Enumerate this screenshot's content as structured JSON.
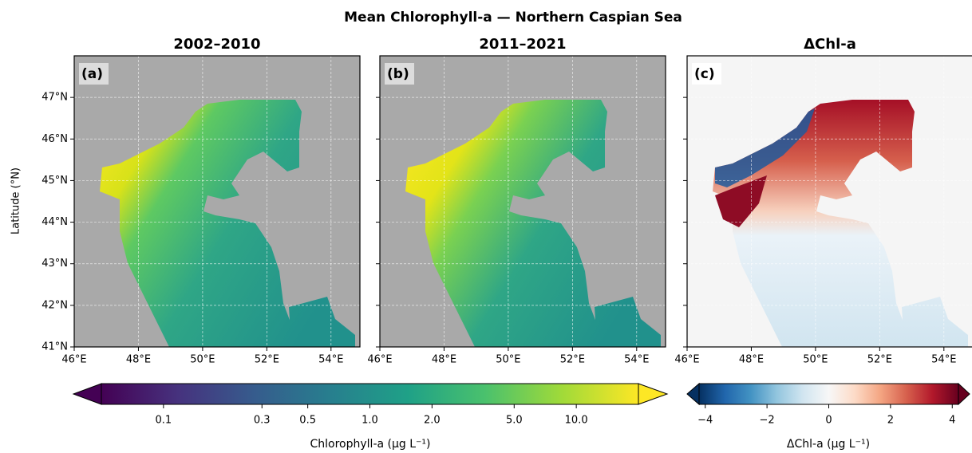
{
  "title": "Mean Chlorophyll-a — Northern Caspian Sea",
  "y_label": "Latitude (°N)",
  "panels": [
    {
      "title": "2002–2010",
      "label": "(a)"
    },
    {
      "title": "2011–2021",
      "label": "(b)"
    },
    {
      "title": "ΔChl-a",
      "label": "(c)"
    }
  ],
  "xlim": [
    46,
    54.9
  ],
  "ylim": [
    41,
    48
  ],
  "xticks": [
    {
      "value": 46,
      "label": "46°E"
    },
    {
      "value": 48,
      "label": "48°E"
    },
    {
      "value": 50,
      "label": "50°E"
    },
    {
      "value": 52,
      "label": "52°E"
    },
    {
      "value": 54,
      "label": "54°E"
    }
  ],
  "yticks": [
    {
      "value": 41,
      "label": "41°N"
    },
    {
      "value": 42,
      "label": "42°N"
    },
    {
      "value": 43,
      "label": "43°N"
    },
    {
      "value": 44,
      "label": "44°N"
    },
    {
      "value": 45,
      "label": "45°N"
    },
    {
      "value": 46,
      "label": "46°N"
    },
    {
      "value": 47,
      "label": "47°N"
    }
  ],
  "grid": true,
  "colorbars": [
    {
      "label": "Chlorophyll-a  (µg L⁻¹)",
      "scale": "log",
      "clim": [
        0.05,
        20
      ],
      "ticks": [
        0.1,
        0.3,
        0.5,
        {
          "value": 1,
          "label": "1.0"
        },
        {
          "value": 2,
          "label": "2.0"
        },
        {
          "value": 5,
          "label": "5.0"
        },
        {
          "value": 10,
          "label": "10.0"
        }
      ],
      "colors": [
        "#440154",
        "#46327e",
        "#365c8d",
        "#277f8e",
        "#1fa187",
        "#4ac16d",
        "#a0da39",
        "#fde725"
      ]
    },
    {
      "label": "ΔChl-a  (µg L⁻¹)",
      "scale": "linear",
      "clim": [
        -4.2,
        4.2
      ],
      "ticks": [
        {
          "value": -4,
          "label": "−4"
        },
        {
          "value": -2,
          "label": "−2"
        },
        0,
        2,
        4
      ],
      "colors": [
        "#053061",
        "#2166ac",
        "#4393c3",
        "#92c5de",
        "#d1e5f0",
        "#f7f7f7",
        "#fddbc7",
        "#f4a582",
        "#d6604d",
        "#b2182b",
        "#67001f"
      ]
    }
  ]
}
